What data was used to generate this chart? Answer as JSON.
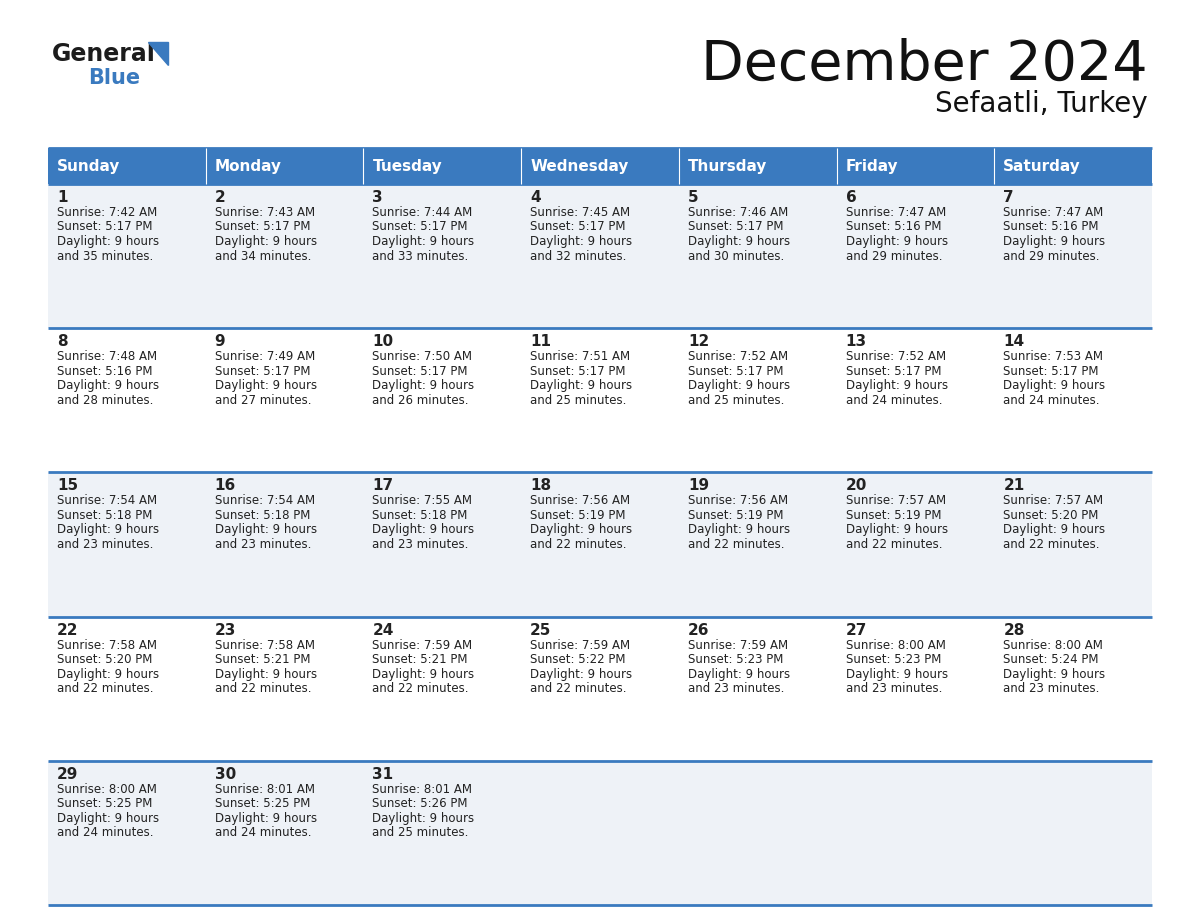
{
  "title": "December 2024",
  "subtitle": "Sefaatli, Turkey",
  "days_of_week": [
    "Sunday",
    "Monday",
    "Tuesday",
    "Wednesday",
    "Thursday",
    "Friday",
    "Saturday"
  ],
  "header_bg": "#3a7abf",
  "header_text": "#ffffff",
  "row_bg_light": "#eef2f7",
  "row_bg_white": "#ffffff",
  "cell_border_color": "#3a7abf",
  "day_num_color": "#222222",
  "info_text_color": "#222222",
  "background": "#ffffff",
  "calendar_data": [
    [
      {
        "day": 1,
        "sunrise": "7:42 AM",
        "sunset": "5:17 PM",
        "daylight_h": "9 hours",
        "daylight_m": "35 minutes."
      },
      {
        "day": 2,
        "sunrise": "7:43 AM",
        "sunset": "5:17 PM",
        "daylight_h": "9 hours",
        "daylight_m": "34 minutes."
      },
      {
        "day": 3,
        "sunrise": "7:44 AM",
        "sunset": "5:17 PM",
        "daylight_h": "9 hours",
        "daylight_m": "33 minutes."
      },
      {
        "day": 4,
        "sunrise": "7:45 AM",
        "sunset": "5:17 PM",
        "daylight_h": "9 hours",
        "daylight_m": "32 minutes."
      },
      {
        "day": 5,
        "sunrise": "7:46 AM",
        "sunset": "5:17 PM",
        "daylight_h": "9 hours",
        "daylight_m": "30 minutes."
      },
      {
        "day": 6,
        "sunrise": "7:47 AM",
        "sunset": "5:16 PM",
        "daylight_h": "9 hours",
        "daylight_m": "29 minutes."
      },
      {
        "day": 7,
        "sunrise": "7:47 AM",
        "sunset": "5:16 PM",
        "daylight_h": "9 hours",
        "daylight_m": "29 minutes."
      }
    ],
    [
      {
        "day": 8,
        "sunrise": "7:48 AM",
        "sunset": "5:16 PM",
        "daylight_h": "9 hours",
        "daylight_m": "28 minutes."
      },
      {
        "day": 9,
        "sunrise": "7:49 AM",
        "sunset": "5:17 PM",
        "daylight_h": "9 hours",
        "daylight_m": "27 minutes."
      },
      {
        "day": 10,
        "sunrise": "7:50 AM",
        "sunset": "5:17 PM",
        "daylight_h": "9 hours",
        "daylight_m": "26 minutes."
      },
      {
        "day": 11,
        "sunrise": "7:51 AM",
        "sunset": "5:17 PM",
        "daylight_h": "9 hours",
        "daylight_m": "25 minutes."
      },
      {
        "day": 12,
        "sunrise": "7:52 AM",
        "sunset": "5:17 PM",
        "daylight_h": "9 hours",
        "daylight_m": "25 minutes."
      },
      {
        "day": 13,
        "sunrise": "7:52 AM",
        "sunset": "5:17 PM",
        "daylight_h": "9 hours",
        "daylight_m": "24 minutes."
      },
      {
        "day": 14,
        "sunrise": "7:53 AM",
        "sunset": "5:17 PM",
        "daylight_h": "9 hours",
        "daylight_m": "24 minutes."
      }
    ],
    [
      {
        "day": 15,
        "sunrise": "7:54 AM",
        "sunset": "5:18 PM",
        "daylight_h": "9 hours",
        "daylight_m": "23 minutes."
      },
      {
        "day": 16,
        "sunrise": "7:54 AM",
        "sunset": "5:18 PM",
        "daylight_h": "9 hours",
        "daylight_m": "23 minutes."
      },
      {
        "day": 17,
        "sunrise": "7:55 AM",
        "sunset": "5:18 PM",
        "daylight_h": "9 hours",
        "daylight_m": "23 minutes."
      },
      {
        "day": 18,
        "sunrise": "7:56 AM",
        "sunset": "5:19 PM",
        "daylight_h": "9 hours",
        "daylight_m": "22 minutes."
      },
      {
        "day": 19,
        "sunrise": "7:56 AM",
        "sunset": "5:19 PM",
        "daylight_h": "9 hours",
        "daylight_m": "22 minutes."
      },
      {
        "day": 20,
        "sunrise": "7:57 AM",
        "sunset": "5:19 PM",
        "daylight_h": "9 hours",
        "daylight_m": "22 minutes."
      },
      {
        "day": 21,
        "sunrise": "7:57 AM",
        "sunset": "5:20 PM",
        "daylight_h": "9 hours",
        "daylight_m": "22 minutes."
      }
    ],
    [
      {
        "day": 22,
        "sunrise": "7:58 AM",
        "sunset": "5:20 PM",
        "daylight_h": "9 hours",
        "daylight_m": "22 minutes."
      },
      {
        "day": 23,
        "sunrise": "7:58 AM",
        "sunset": "5:21 PM",
        "daylight_h": "9 hours",
        "daylight_m": "22 minutes."
      },
      {
        "day": 24,
        "sunrise": "7:59 AM",
        "sunset": "5:21 PM",
        "daylight_h": "9 hours",
        "daylight_m": "22 minutes."
      },
      {
        "day": 25,
        "sunrise": "7:59 AM",
        "sunset": "5:22 PM",
        "daylight_h": "9 hours",
        "daylight_m": "22 minutes."
      },
      {
        "day": 26,
        "sunrise": "7:59 AM",
        "sunset": "5:23 PM",
        "daylight_h": "9 hours",
        "daylight_m": "23 minutes."
      },
      {
        "day": 27,
        "sunrise": "8:00 AM",
        "sunset": "5:23 PM",
        "daylight_h": "9 hours",
        "daylight_m": "23 minutes."
      },
      {
        "day": 28,
        "sunrise": "8:00 AM",
        "sunset": "5:24 PM",
        "daylight_h": "9 hours",
        "daylight_m": "23 minutes."
      }
    ],
    [
      {
        "day": 29,
        "sunrise": "8:00 AM",
        "sunset": "5:25 PM",
        "daylight_h": "9 hours",
        "daylight_m": "24 minutes."
      },
      {
        "day": 30,
        "sunrise": "8:01 AM",
        "sunset": "5:25 PM",
        "daylight_h": "9 hours",
        "daylight_m": "24 minutes."
      },
      {
        "day": 31,
        "sunrise": "8:01 AM",
        "sunset": "5:26 PM",
        "daylight_h": "9 hours",
        "daylight_m": "25 minutes."
      },
      null,
      null,
      null,
      null
    ]
  ]
}
